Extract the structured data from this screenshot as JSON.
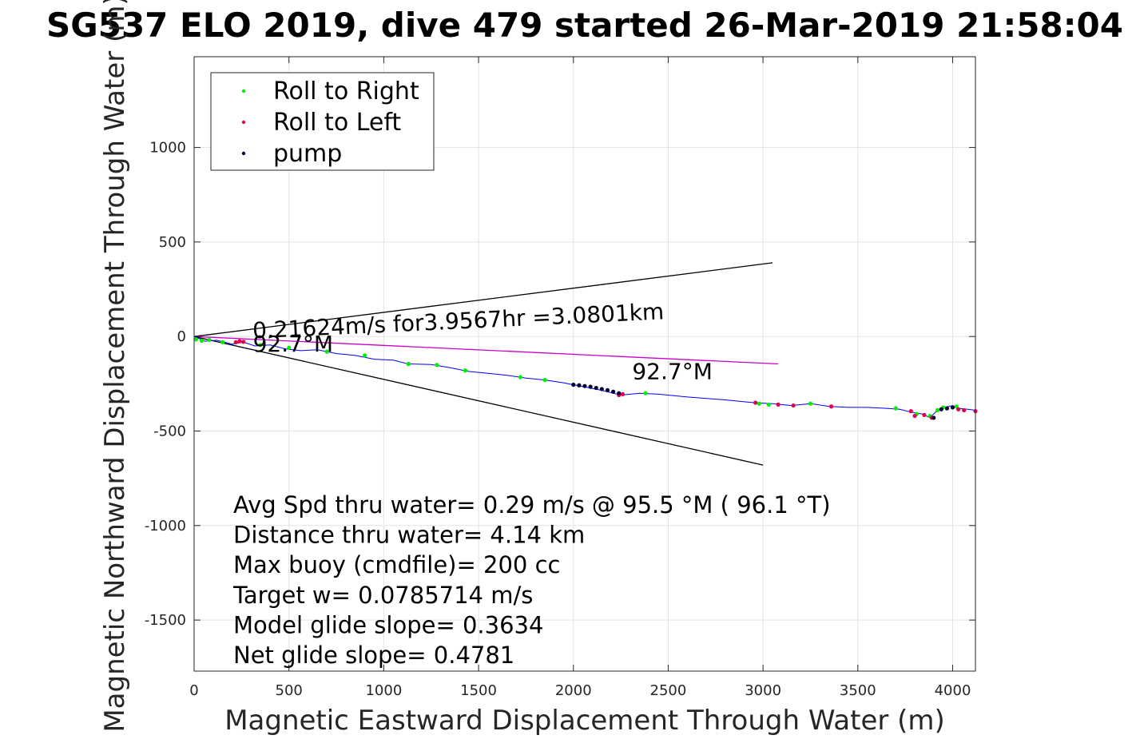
{
  "chart_data": {
    "type": "scatter",
    "title": "SG537 ELO 2019, dive 479 started 26-Mar-2019 21:58:04",
    "xlabel": "Magnetic Eastward Displacement Through Water (m)",
    "ylabel": "Magnetic Northward Displacement Through Water (m)",
    "xlim": [
      0,
      4120
    ],
    "ylim": [
      -1770,
      1480
    ],
    "xticks": [
      0,
      500,
      1000,
      1500,
      2000,
      2500,
      3000,
      3500,
      4000
    ],
    "yticks": [
      -1500,
      -1000,
      -500,
      0,
      500,
      1000
    ],
    "grid": true,
    "legend_position": "top-left",
    "legend": [
      {
        "label": "Roll to Right",
        "color": "#00ee00"
      },
      {
        "label": "Roll to Left",
        "color": "#e00050"
      },
      {
        "label": "pump",
        "color": "#000033"
      }
    ],
    "track": {
      "color": "#0000ff",
      "points": [
        [
          0,
          0
        ],
        [
          60,
          -25
        ],
        [
          120,
          -20
        ],
        [
          200,
          -40
        ],
        [
          260,
          -30
        ],
        [
          320,
          -50
        ],
        [
          400,
          -45
        ],
        [
          480,
          -65
        ],
        [
          560,
          -75
        ],
        [
          650,
          -70
        ],
        [
          750,
          -90
        ],
        [
          850,
          -100
        ],
        [
          950,
          -120
        ],
        [
          1050,
          -125
        ],
        [
          1130,
          -145
        ],
        [
          1250,
          -148
        ],
        [
          1350,
          -165
        ],
        [
          1450,
          -185
        ],
        [
          1550,
          -195
        ],
        [
          1650,
          -205
        ],
        [
          1750,
          -220
        ],
        [
          1850,
          -230
        ],
        [
          1950,
          -245
        ],
        [
          2050,
          -265
        ],
        [
          2150,
          -285
        ],
        [
          2250,
          -310
        ],
        [
          2300,
          -305
        ],
        [
          2350,
          -300
        ],
        [
          2450,
          -305
        ],
        [
          2600,
          -320
        ],
        [
          2800,
          -335
        ],
        [
          2950,
          -350
        ],
        [
          3050,
          -355
        ],
        [
          3150,
          -365
        ],
        [
          3250,
          -355
        ],
        [
          3350,
          -370
        ],
        [
          3450,
          -375
        ],
        [
          3550,
          -375
        ],
        [
          3650,
          -380
        ],
        [
          3720,
          -385
        ],
        [
          3780,
          -400
        ],
        [
          3840,
          -410
        ],
        [
          3880,
          -430
        ],
        [
          3910,
          -400
        ],
        [
          3930,
          -385
        ],
        [
          3960,
          -375
        ],
        [
          4000,
          -365
        ],
        [
          4030,
          -380
        ],
        [
          4080,
          -385
        ],
        [
          4120,
          -390
        ]
      ]
    },
    "roll_right_points": [
      [
        10,
        -15
      ],
      [
        40,
        -22
      ],
      [
        80,
        -18
      ],
      [
        150,
        -30
      ],
      [
        350,
        -45
      ],
      [
        500,
        -60
      ],
      [
        700,
        -80
      ],
      [
        900,
        -100
      ],
      [
        1130,
        -145
      ],
      [
        1280,
        -150
      ],
      [
        1430,
        -180
      ],
      [
        1720,
        -215
      ],
      [
        1850,
        -230
      ],
      [
        2380,
        -300
      ],
      [
        2980,
        -355
      ],
      [
        3030,
        -360
      ],
      [
        3250,
        -355
      ],
      [
        3700,
        -380
      ],
      [
        3810,
        -410
      ],
      [
        3880,
        -420
      ],
      [
        3920,
        -390
      ],
      [
        3950,
        -375
      ],
      [
        4020,
        -370
      ]
    ],
    "roll_left_points": [
      [
        220,
        -30
      ],
      [
        240,
        -25
      ],
      [
        260,
        -28
      ],
      [
        2240,
        -310
      ],
      [
        2260,
        -305
      ],
      [
        2960,
        -350
      ],
      [
        3080,
        -360
      ],
      [
        3160,
        -365
      ],
      [
        3360,
        -370
      ],
      [
        3780,
        -395
      ],
      [
        3800,
        -420
      ],
      [
        3850,
        -415
      ],
      [
        3890,
        -430
      ],
      [
        4030,
        -385
      ],
      [
        4060,
        -390
      ],
      [
        4120,
        -395
      ]
    ],
    "pump_points": [
      [
        2000,
        -255
      ],
      [
        2030,
        -258
      ],
      [
        2060,
        -262
      ],
      [
        2090,
        -266
      ],
      [
        2120,
        -272
      ],
      [
        2150,
        -278
      ],
      [
        2180,
        -284
      ],
      [
        2210,
        -292
      ],
      [
        2240,
        -300
      ],
      [
        3900,
        -430
      ],
      [
        3940,
        -385
      ],
      [
        3970,
        -380
      ],
      [
        4000,
        -375
      ]
    ],
    "reference_lines": [
      {
        "name": "upper",
        "from": [
          0,
          0
        ],
        "to": [
          3050,
          390
        ],
        "color": "#000000"
      },
      {
        "name": "mean",
        "from": [
          0,
          0
        ],
        "to": [
          3080,
          -145
        ],
        "color": "#cc00cc"
      },
      {
        "name": "lower",
        "from": [
          0,
          0
        ],
        "to": [
          3000,
          -680
        ],
        "color": "#000000"
      }
    ],
    "annotations": [
      {
        "text": "0.21624m/s for3.9567hr =3.0801km",
        "at": [
          310,
          -10
        ],
        "rotate": -2.7
      },
      {
        "text": "92.7°M",
        "at": [
          310,
          -80
        ],
        "rotate": 0
      },
      {
        "text": "92.7°M",
        "at": [
          2310,
          -225
        ],
        "rotate": 0
      }
    ],
    "stats": [
      "Avg Spd thru water=  0.29 m/s @  95.5 °M ( 96.1 °T)",
      "Distance thru water=  4.14 km",
      "Max buoy (cmdfile)= 200 cc",
      "Target w= 0.0785714 m/s",
      "Model glide slope= 0.3634",
      "Net glide slope= 0.4781"
    ]
  }
}
